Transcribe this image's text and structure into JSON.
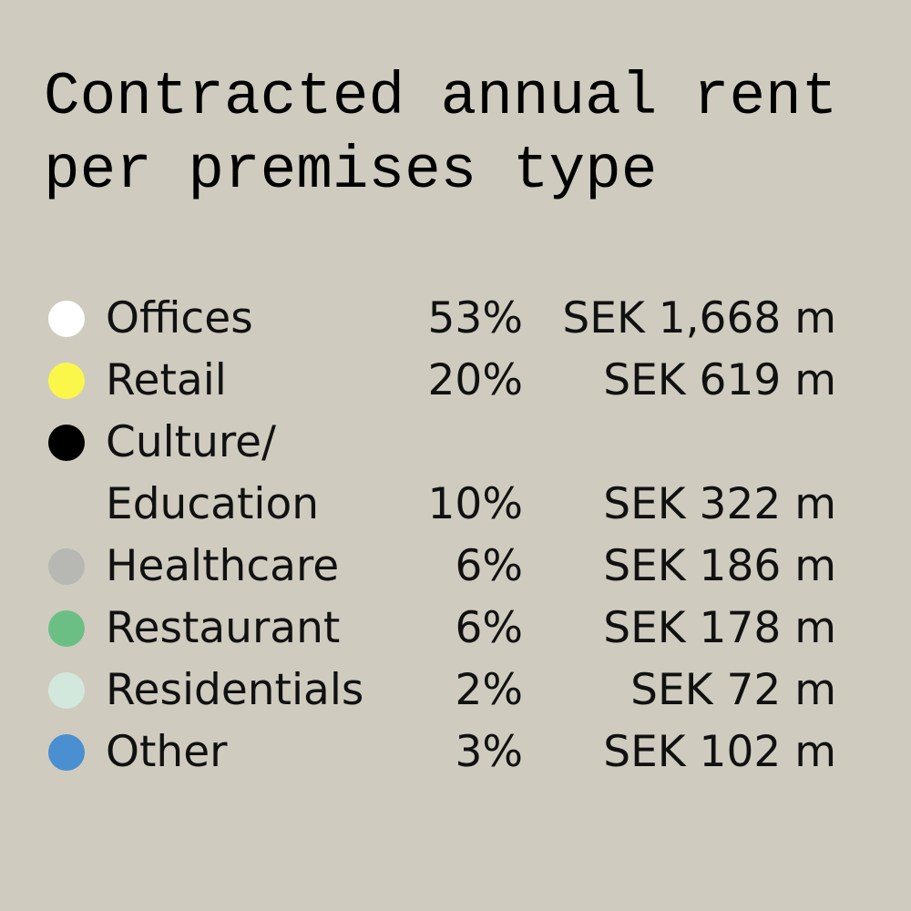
{
  "chart_data": {
    "type": "table",
    "title_lines": [
      "Contracted annual rent",
      "per premises type"
    ],
    "rows": [
      {
        "label_lines": [
          "Offices"
        ],
        "percent": "53%",
        "amount": "SEK 1,668 m",
        "value_pct": 53,
        "value_sek_m": 1668,
        "color": "#ffffff"
      },
      {
        "label_lines": [
          "Retail"
        ],
        "percent": "20%",
        "amount": "SEK 619 m",
        "value_pct": 20,
        "value_sek_m": 619,
        "color": "#fbf74a"
      },
      {
        "label_lines": [
          "Culture/",
          "Education"
        ],
        "percent": "10%",
        "amount": "SEK 322 m",
        "value_pct": 10,
        "value_sek_m": 322,
        "color": "#000000"
      },
      {
        "label_lines": [
          "Healthcare"
        ],
        "percent": "6%",
        "amount": "SEK 186 m",
        "value_pct": 6,
        "value_sek_m": 186,
        "color": "#b7b8b4"
      },
      {
        "label_lines": [
          "Restaurant"
        ],
        "percent": "6%",
        "amount": "SEK 178 m",
        "value_pct": 6,
        "value_sek_m": 178,
        "color": "#6bbf85"
      },
      {
        "label_lines": [
          "Residentials"
        ],
        "percent": "2%",
        "amount": "SEK 72 m",
        "value_pct": 2,
        "value_sek_m": 72,
        "color": "#d3e8dc"
      },
      {
        "label_lines": [
          "Other"
        ],
        "percent": "3%",
        "amount": "SEK 102 m",
        "value_pct": 3,
        "value_sek_m": 102,
        "color": "#4a8fd0"
      }
    ]
  }
}
